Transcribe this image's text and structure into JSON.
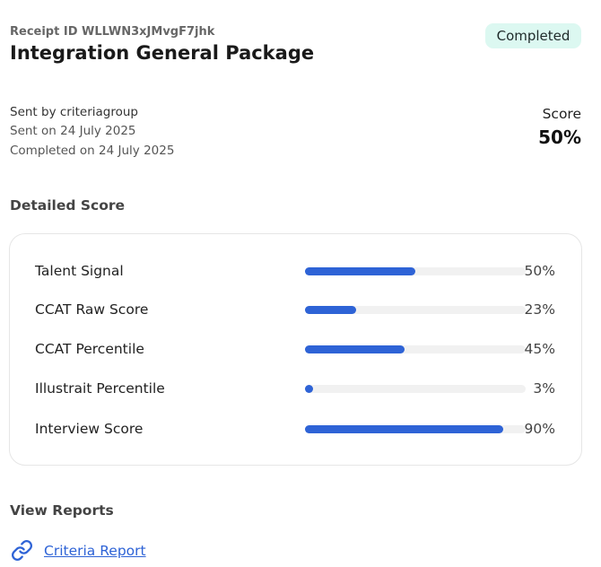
{
  "header": {
    "receipt_id": "Receipt ID WLLWN3xJMvgF7jhk",
    "title": "Integration General Package",
    "status": "Completed"
  },
  "meta": {
    "sent_by": "Sent by criteriagroup",
    "sent_on": "Sent on 24 July 2025",
    "completed_on": "Completed on 24 July 2025"
  },
  "score": {
    "label": "Score",
    "value": "50%"
  },
  "detailed_score": {
    "heading": "Detailed Score",
    "rows": [
      {
        "label": "Talent Signal",
        "value": "50%",
        "fraction": 0.5
      },
      {
        "label": "CCAT Raw Score",
        "value": "23%",
        "fraction": 0.23
      },
      {
        "label": "CCAT Percentile",
        "value": "45%",
        "fraction": 0.45
      },
      {
        "label": "Illustrait Percentile",
        "value": "3%",
        "fraction": 0.03
      },
      {
        "label": "Interview Score",
        "value": "90%",
        "fraction": 0.9
      }
    ]
  },
  "reports": {
    "heading": "View Reports",
    "links": [
      {
        "label": "Criteria Report",
        "icon": "link-icon"
      }
    ]
  },
  "colors": {
    "accent": "#2e63d6",
    "badge_bg": "#dcf8f1",
    "track": "#f1f1f1"
  }
}
